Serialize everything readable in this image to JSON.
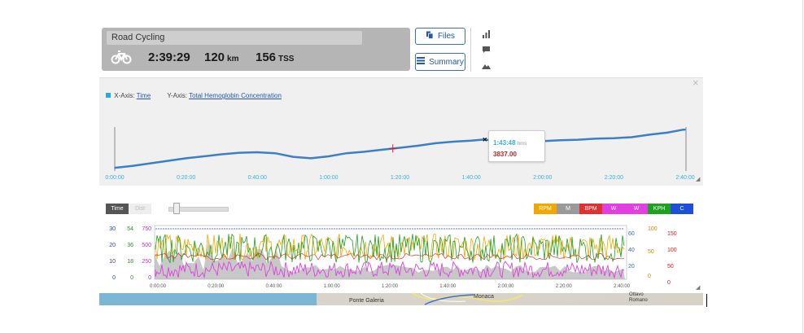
{
  "activity": {
    "title": "Road Cycling",
    "duration": "2:39:29",
    "distance_value": "120",
    "distance_unit": "km",
    "tss_value": "156",
    "tss_unit": "TSS",
    "sport_icon": "bicycle-icon"
  },
  "buttons": {
    "files_label": "Files",
    "summary_label": "Summary"
  },
  "side_icons": [
    "bar-chart-icon",
    "comment-icon",
    "mountain-icon"
  ],
  "chart_panel": {
    "x_axis_prefix": "X-Axis:",
    "x_axis_value": "Time",
    "y_axis_prefix": "Y-Axis:",
    "y_axis_value": "Total Hemoglobin Concentration",
    "close_glyph": "×",
    "accent_color": "#3a7fc8"
  },
  "chart_data": {
    "type": "line",
    "xlabel": "",
    "ylabel": "",
    "x_ticks": [
      "0:00:00",
      "0:20:00",
      "0:40:00",
      "1:00:00",
      "1:20:00",
      "1:40:00",
      "2:00:00",
      "2:20:00",
      "2:40:00"
    ],
    "x_minutes": [
      0,
      5,
      10,
      15,
      20,
      25,
      30,
      35,
      40,
      45,
      50,
      55,
      60,
      65,
      70,
      75,
      80,
      85,
      90,
      95,
      100,
      103.8,
      105,
      110,
      115,
      120,
      125,
      130,
      135,
      140,
      145,
      150,
      155,
      159.5,
      160
    ],
    "values": [
      3555,
      3575,
      3600,
      3625,
      3650,
      3670,
      3690,
      3705,
      3710,
      3700,
      3665,
      3650,
      3670,
      3700,
      3715,
      3735,
      3755,
      3775,
      3800,
      3815,
      3825,
      3837,
      3830,
      3800,
      3810,
      3820,
      3830,
      3835,
      3845,
      3850,
      3860,
      3885,
      3905,
      3935,
      3935
    ],
    "tooltip": {
      "time": "1:43:48",
      "unit": "hms",
      "value": "3837.00"
    }
  },
  "lower_chart": {
    "tab_time": "Time",
    "tab_dist": "Dist",
    "channels": [
      {
        "label": "RPM",
        "color": "#f0a800"
      },
      {
        "label": "M",
        "color": "#9a9a9a"
      },
      {
        "label": "BPM",
        "color": "#e03030"
      },
      {
        "label": "W",
        "color": "#e040e0"
      },
      {
        "label": "W",
        "color": "#e040e0"
      },
      {
        "label": "KPH",
        "color": "#20a020"
      },
      {
        "label": "C",
        "color": "#1e4fd8"
      }
    ],
    "left_axes": [
      {
        "color": "#2a3fa8",
        "ticks": [
          "30",
          "20",
          "10",
          "0"
        ]
      },
      {
        "color": "#2a8a2a",
        "ticks": [
          "54",
          "36",
          "18",
          "0"
        ]
      },
      {
        "color": "#c030c0",
        "ticks": [
          "750",
          "500",
          "250",
          "0"
        ]
      }
    ],
    "right_axes": [
      {
        "color": "#3a6fb5",
        "ticks": [
          "60",
          "40",
          "20"
        ]
      },
      {
        "color": "#d08a00",
        "ticks": [
          "100",
          "50",
          "0"
        ]
      },
      {
        "color": "#d02020",
        "ticks": [
          "150",
          "100",
          "50",
          "0"
        ]
      }
    ],
    "x_ticks": [
      "0:00:00",
      "0:20:00",
      "0:40:00",
      "1:00:00",
      "1:20:00",
      "1:40:00",
      "2:00:00",
      "2:20:00",
      "2:40:00"
    ]
  },
  "map": {
    "labels": [
      "Monaca",
      "Ponte Galeria",
      "Romano",
      "Ottavo"
    ]
  }
}
